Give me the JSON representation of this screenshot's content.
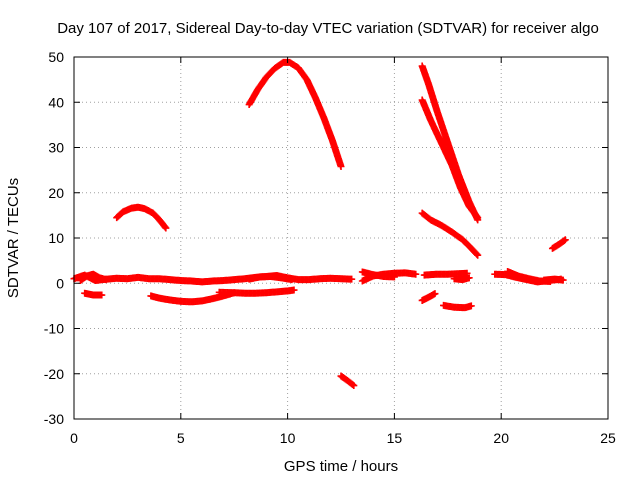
{
  "chart_data": {
    "type": "scatter",
    "title": "Day 107 of 2017, Sidereal Day-to-day VTEC variation (SDTVAR) for receiver algo",
    "xlabel": "GPS time / hours",
    "ylabel": "SDTVAR / TECUs",
    "xlim": [
      0,
      25
    ],
    "ylim": [
      -30,
      50
    ],
    "x_ticks": [
      0,
      5,
      10,
      15,
      20,
      25
    ],
    "y_ticks": [
      -30,
      -20,
      -10,
      0,
      10,
      20,
      30,
      40,
      50
    ],
    "x_tick_labels": [
      "0",
      "5",
      "10",
      "15",
      "20",
      "25"
    ],
    "y_tick_labels": [
      "-30",
      "-20",
      "-10",
      "0",
      "10",
      "20",
      "30",
      "40",
      "50"
    ],
    "grid": true,
    "legend": "none",
    "marker": "plus",
    "color": "#ff0000",
    "series": [
      {
        "values": [
          [
            0.0,
            1.0
          ],
          [
            0.5,
            1.8
          ],
          [
            1.0,
            0.6
          ],
          [
            1.5,
            0.9
          ],
          [
            2.0,
            1.1
          ],
          [
            2.5,
            1.0
          ],
          [
            3.0,
            1.3
          ],
          [
            3.5,
            1.0
          ],
          [
            4.0,
            1.0
          ],
          [
            4.5,
            0.8
          ],
          [
            5.0,
            0.6
          ],
          [
            5.5,
            0.5
          ],
          [
            6.0,
            0.3
          ],
          [
            6.5,
            0.5
          ],
          [
            7.0,
            0.6
          ],
          [
            7.5,
            0.8
          ],
          [
            8.0,
            1.0
          ],
          [
            8.5,
            1.3
          ],
          [
            9.0,
            1.5
          ],
          [
            9.5,
            1.7
          ],
          [
            10.0,
            1.2
          ],
          [
            10.5,
            0.8
          ],
          [
            11.0,
            0.8
          ],
          [
            11.5,
            1.0
          ],
          [
            12.0,
            1.1
          ],
          [
            12.5,
            1.0
          ],
          [
            13.0,
            0.9
          ]
        ]
      },
      {
        "values": [
          [
            8.2,
            0.9
          ],
          [
            8.7,
            1.4
          ],
          [
            9.2,
            1.5
          ],
          [
            9.7,
            1.2
          ],
          [
            10.2,
            0.8
          ]
        ]
      },
      {
        "values": [
          [
            0.3,
            0.6
          ],
          [
            0.6,
            1.6
          ],
          [
            0.9,
            2.0
          ],
          [
            1.2,
            1.2
          ],
          [
            1.5,
            0.8
          ]
        ]
      },
      {
        "values": [
          [
            13.5,
            0.5
          ],
          [
            14.0,
            1.6
          ],
          [
            14.5,
            2.0
          ],
          [
            15.0,
            2.2
          ],
          [
            15.5,
            2.3
          ],
          [
            16.0,
            2.0
          ]
        ]
      },
      {
        "values": [
          [
            13.5,
            2.5
          ],
          [
            14.0,
            1.9
          ],
          [
            14.5,
            1.5
          ],
          [
            15.0,
            1.4
          ]
        ]
      },
      {
        "values": [
          [
            16.4,
            1.8
          ],
          [
            17.0,
            2.0
          ],
          [
            17.5,
            2.0
          ],
          [
            18.0,
            2.1
          ],
          [
            18.4,
            2.2
          ]
        ]
      },
      {
        "values": [
          [
            17.8,
            1.0
          ],
          [
            18.2,
            0.8
          ],
          [
            18.5,
            1.2
          ]
        ]
      },
      {
        "values": [
          [
            19.7,
            2.0
          ],
          [
            20.2,
            1.9
          ],
          [
            20.7,
            1.3
          ],
          [
            21.2,
            0.8
          ],
          [
            21.7,
            0.3
          ],
          [
            22.2,
            0.6
          ],
          [
            22.8,
            0.9
          ]
        ]
      },
      {
        "values": [
          [
            20.3,
            2.6
          ],
          [
            20.8,
            1.6
          ],
          [
            21.3,
            1.0
          ],
          [
            21.8,
            0.5
          ],
          [
            22.3,
            0.4
          ]
        ]
      },
      {
        "values": [
          [
            0.5,
            -2.2
          ],
          [
            0.9,
            -2.6
          ],
          [
            1.3,
            -2.6
          ]
        ]
      },
      {
        "values": [
          [
            3.6,
            -2.8
          ],
          [
            4.0,
            -3.3
          ],
          [
            4.5,
            -3.7
          ],
          [
            5.0,
            -4.0
          ],
          [
            5.5,
            -4.1
          ],
          [
            6.0,
            -3.9
          ],
          [
            6.5,
            -3.4
          ],
          [
            7.0,
            -2.8
          ],
          [
            7.5,
            -2.1
          ]
        ]
      },
      {
        "values": [
          [
            6.8,
            -2.0
          ],
          [
            7.5,
            -2.1
          ],
          [
            8.0,
            -2.2
          ],
          [
            8.5,
            -2.2
          ],
          [
            9.0,
            -2.1
          ],
          [
            9.5,
            -1.9
          ],
          [
            10.0,
            -1.7
          ],
          [
            10.3,
            -1.5
          ]
        ]
      },
      {
        "values": [
          [
            16.3,
            -3.8
          ],
          [
            16.6,
            -3.1
          ],
          [
            16.9,
            -2.3
          ]
        ]
      },
      {
        "values": [
          [
            17.3,
            -4.9
          ],
          [
            17.8,
            -5.3
          ],
          [
            18.3,
            -5.4
          ],
          [
            18.6,
            -5.0
          ]
        ]
      },
      {
        "values": [
          [
            2.0,
            14.5
          ],
          [
            2.3,
            15.8
          ],
          [
            2.7,
            16.6
          ],
          [
            3.0,
            16.8
          ],
          [
            3.3,
            16.5
          ],
          [
            3.7,
            15.5
          ],
          [
            4.0,
            14.0
          ],
          [
            4.3,
            12.2
          ]
        ]
      },
      {
        "values": [
          [
            8.2,
            39.5
          ],
          [
            8.6,
            42.8
          ],
          [
            9.0,
            45.5
          ],
          [
            9.4,
            47.5
          ],
          [
            9.8,
            48.8
          ],
          [
            10.1,
            48.8
          ],
          [
            10.5,
            47.6
          ],
          [
            10.9,
            45.0
          ],
          [
            11.3,
            41.0
          ],
          [
            11.7,
            36.5
          ],
          [
            12.1,
            31.5
          ],
          [
            12.5,
            25.8
          ]
        ]
      },
      {
        "values": [
          [
            16.3,
            48.0
          ],
          [
            16.6,
            44.0
          ],
          [
            17.0,
            38.0
          ],
          [
            17.5,
            31.0
          ],
          [
            18.0,
            24.0
          ],
          [
            18.5,
            18.0
          ],
          [
            18.9,
            14.0
          ]
        ]
      },
      {
        "values": [
          [
            16.3,
            40.5
          ],
          [
            16.7,
            36.0
          ],
          [
            17.2,
            31.0
          ],
          [
            17.7,
            26.0
          ],
          [
            18.1,
            21.0
          ],
          [
            18.5,
            17.0
          ],
          [
            18.9,
            14.5
          ]
        ]
      },
      {
        "values": [
          [
            16.3,
            15.5
          ],
          [
            16.7,
            14.0
          ],
          [
            17.2,
            12.8
          ],
          [
            17.7,
            11.3
          ],
          [
            18.2,
            9.6
          ],
          [
            18.5,
            8.2
          ],
          [
            18.9,
            6.2
          ]
        ]
      },
      {
        "values": [
          [
            22.4,
            7.7
          ],
          [
            22.7,
            8.6
          ],
          [
            23.0,
            9.6
          ]
        ]
      },
      {
        "values": [
          [
            22.0,
            0.7
          ],
          [
            22.5,
            0.9
          ],
          [
            22.9,
            0.7
          ]
        ]
      },
      {
        "values": [
          [
            12.5,
            -20.5
          ],
          [
            12.8,
            -21.5
          ],
          [
            13.1,
            -22.6
          ]
        ]
      }
    ]
  }
}
